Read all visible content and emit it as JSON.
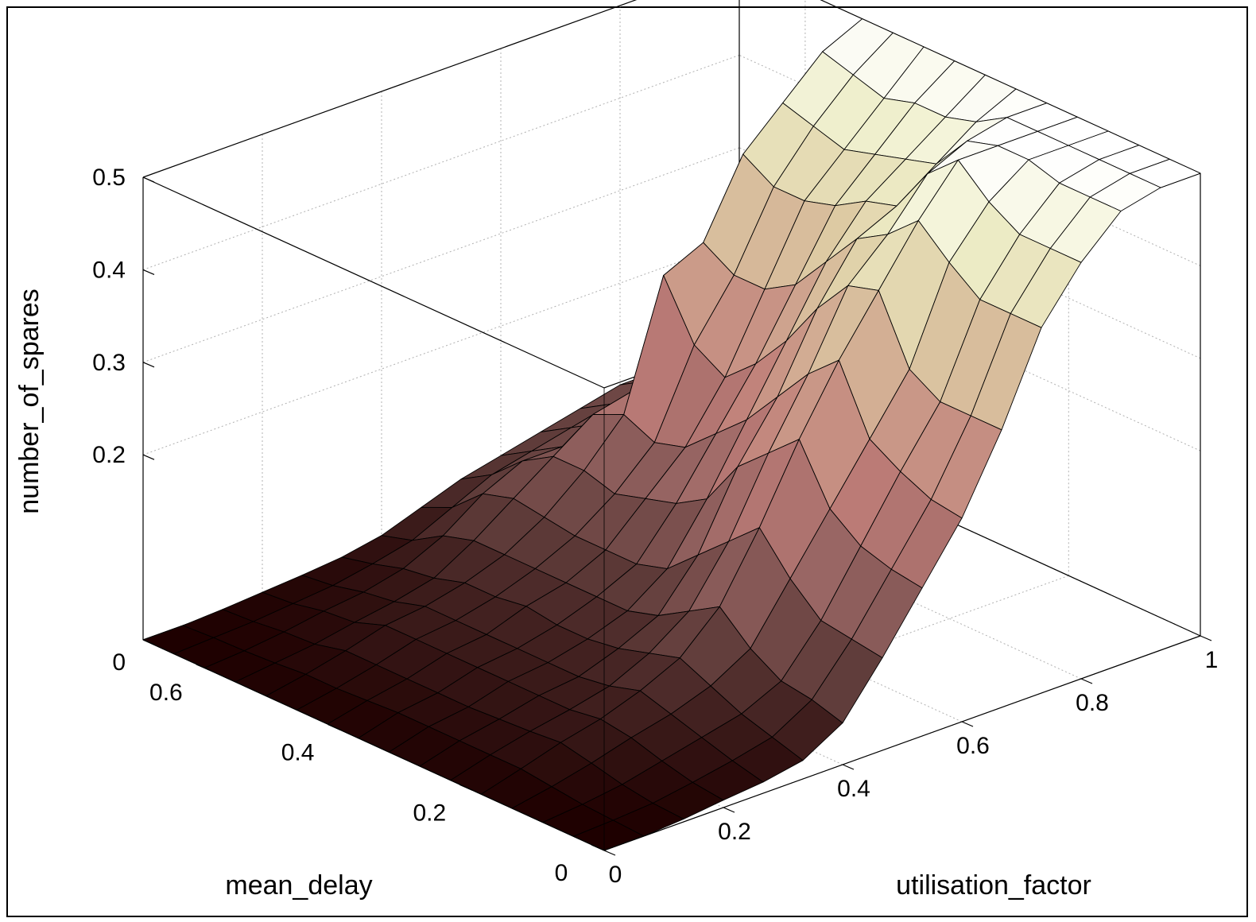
{
  "chart_data": {
    "type": "surface",
    "title": "",
    "xlabel": "utilisation_factor",
    "ylabel": "mean_delay",
    "zlabel": "number_of_spares",
    "xlim": [
      0,
      1
    ],
    "ylim": [
      0,
      0.7
    ],
    "zlim": [
      0,
      0.5
    ],
    "x_ticks": [
      0,
      0.2,
      0.4,
      0.6,
      0.8,
      1
    ],
    "y_ticks": [
      0,
      0.2,
      0.4,
      0.6
    ],
    "z_ticks": [
      0,
      0.2,
      0.3,
      0.4,
      0.5
    ],
    "x_tick_labels": [
      "0",
      "0.2",
      "0.4",
      "0.6",
      "0.8",
      "1"
    ],
    "y_tick_labels": [
      "0",
      "0.2",
      "0.4",
      "0.6"
    ],
    "z_tick_labels": [
      "0",
      "0.2",
      "0.3",
      "0.4",
      "0.5"
    ],
    "grid": true,
    "colormap": "pink",
    "x_grid": [
      0,
      0.0667,
      0.1333,
      0.2,
      0.2667,
      0.3333,
      0.4,
      0.4667,
      0.5333,
      0.6,
      0.6667,
      0.7333,
      0.8,
      0.8667,
      0.9333,
      1.0
    ],
    "y_grid": [
      0,
      0.0467,
      0.0933,
      0.14,
      0.1867,
      0.2333,
      0.28,
      0.3267,
      0.3733,
      0.42,
      0.4667,
      0.5133,
      0.56,
      0.6067,
      0.6533,
      0.7
    ],
    "z": [
      [
        0.0,
        0.0,
        0.003,
        0.008,
        0.012,
        0.02,
        0.045,
        0.1,
        0.16,
        0.22,
        0.3,
        0.395,
        0.45,
        0.49,
        0.5,
        0.5
      ],
      [
        0.0,
        0.002,
        0.005,
        0.012,
        0.02,
        0.03,
        0.055,
        0.105,
        0.165,
        0.225,
        0.3,
        0.395,
        0.45,
        0.49,
        0.5,
        0.5
      ],
      [
        0.0,
        0.004,
        0.01,
        0.02,
        0.03,
        0.04,
        0.06,
        0.11,
        0.175,
        0.24,
        0.3,
        0.395,
        0.45,
        0.49,
        0.5,
        0.5
      ],
      [
        0.0,
        0.008,
        0.018,
        0.03,
        0.04,
        0.055,
        0.08,
        0.14,
        0.2,
        0.26,
        0.32,
        0.42,
        0.47,
        0.5,
        0.5,
        0.5
      ],
      [
        0.0,
        0.012,
        0.025,
        0.035,
        0.05,
        0.07,
        0.11,
        0.18,
        0.26,
        0.33,
        0.39,
        0.45,
        0.5,
        0.5,
        0.5,
        0.5
      ],
      [
        0.0,
        0.012,
        0.022,
        0.03,
        0.04,
        0.06,
        0.09,
        0.15,
        0.23,
        0.3,
        0.38,
        0.42,
        0.47,
        0.49,
        0.5,
        0.5
      ],
      [
        0.0,
        0.012,
        0.02,
        0.03,
        0.035,
        0.05,
        0.07,
        0.12,
        0.2,
        0.26,
        0.34,
        0.4,
        0.42,
        0.45,
        0.48,
        0.5
      ],
      [
        0.0,
        0.012,
        0.018,
        0.03,
        0.035,
        0.045,
        0.06,
        0.09,
        0.15,
        0.22,
        0.29,
        0.36,
        0.41,
        0.44,
        0.47,
        0.5
      ],
      [
        0.0,
        0.012,
        0.018,
        0.03,
        0.035,
        0.045,
        0.06,
        0.08,
        0.13,
        0.19,
        0.25,
        0.32,
        0.39,
        0.43,
        0.47,
        0.5
      ],
      [
        0.0,
        0.01,
        0.018,
        0.03,
        0.035,
        0.05,
        0.06,
        0.08,
        0.12,
        0.16,
        0.22,
        0.3,
        0.38,
        0.42,
        0.46,
        0.5
      ],
      [
        0.0,
        0.008,
        0.018,
        0.03,
        0.035,
        0.045,
        0.06,
        0.08,
        0.11,
        0.15,
        0.24,
        0.3,
        0.38,
        0.43,
        0.47,
        0.5
      ],
      [
        0.0,
        0.008,
        0.018,
        0.03,
        0.035,
        0.045,
        0.06,
        0.085,
        0.12,
        0.165,
        0.3,
        0.32,
        0.4,
        0.44,
        0.48,
        0.5
      ],
      [
        0.0,
        0.005,
        0.01,
        0.018,
        0.025,
        0.035,
        0.06,
        0.09,
        0.12,
        0.15,
        0.16,
        0.17,
        0.18,
        0.18,
        0.18,
        0.18
      ],
      [
        0.0,
        0.003,
        0.008,
        0.015,
        0.02,
        0.03,
        0.05,
        0.08,
        0.1,
        0.1,
        0.11,
        0.12,
        0.14,
        0.14,
        0.14,
        0.14
      ],
      [
        0.0,
        0.002,
        0.004,
        0.008,
        0.012,
        0.02,
        0.03,
        0.05,
        0.07,
        0.08,
        0.09,
        0.1,
        0.11,
        0.11,
        0.11,
        0.11
      ],
      [
        0.0,
        0.0,
        0.002,
        0.005,
        0.008,
        0.012,
        0.02,
        0.035,
        0.05,
        0.06,
        0.07,
        0.08,
        0.09,
        0.09,
        0.09,
        0.09
      ]
    ]
  }
}
